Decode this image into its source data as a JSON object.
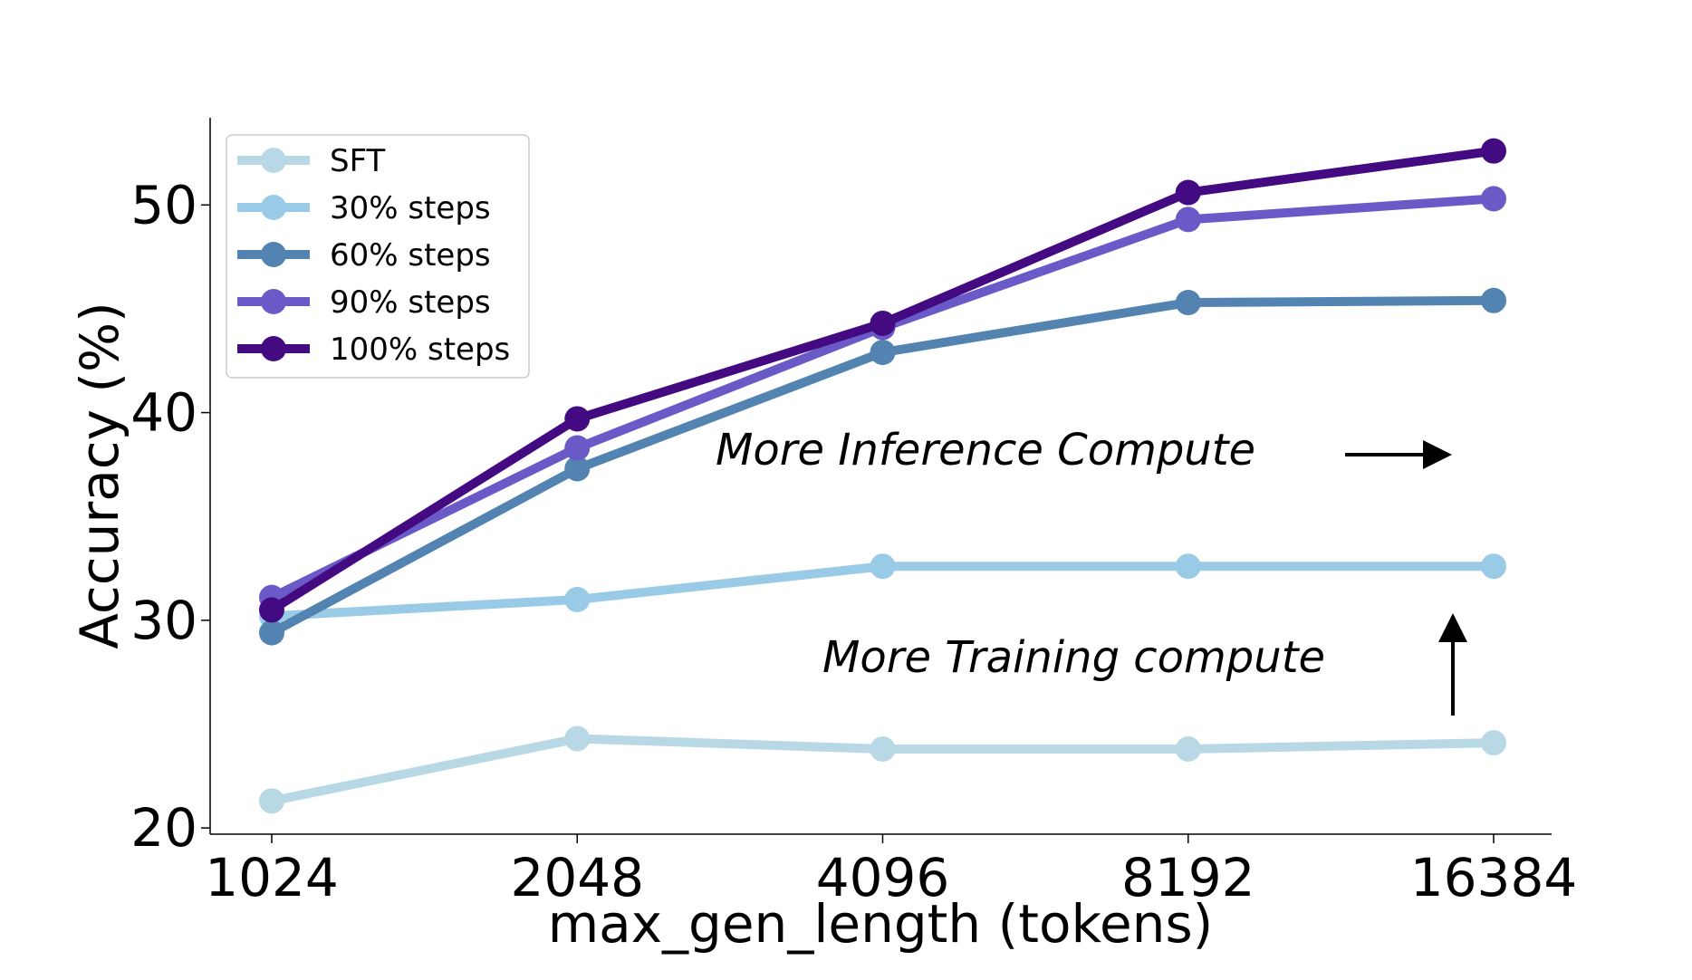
{
  "chart_data": {
    "type": "line",
    "title": "",
    "xlabel": "max_gen_length (tokens)",
    "ylabel": "Accuracy (%)",
    "categories": [
      "1024",
      "2048",
      "4096",
      "8192",
      "16384"
    ],
    "ylim": [
      19.7,
      54.2
    ],
    "yticks": [
      20,
      30,
      40,
      50
    ],
    "grid": false,
    "legend_position": "top-left",
    "series": [
      {
        "name": "SFT",
        "color": "#b7d8e4",
        "values": [
          21.3,
          24.3,
          23.8,
          23.8,
          24.1
        ]
      },
      {
        "name": "30% steps",
        "color": "#9acbe6",
        "values": [
          30.2,
          31.0,
          32.6,
          32.6,
          32.6
        ]
      },
      {
        "name": "60% steps",
        "color": "#5283b1",
        "values": [
          29.4,
          37.3,
          42.9,
          45.3,
          45.4
        ]
      },
      {
        "name": "90% steps",
        "color": "#6a5ac8",
        "values": [
          31.1,
          38.3,
          44.1,
          49.3,
          50.3
        ]
      },
      {
        "name": "100% steps",
        "color": "#440a82",
        "values": [
          30.5,
          39.7,
          44.3,
          50.6,
          52.6
        ]
      }
    ],
    "annotations": [
      {
        "text": "More Inference Compute",
        "arrow": "right"
      },
      {
        "text": "More Training compute",
        "arrow": "up"
      }
    ]
  }
}
